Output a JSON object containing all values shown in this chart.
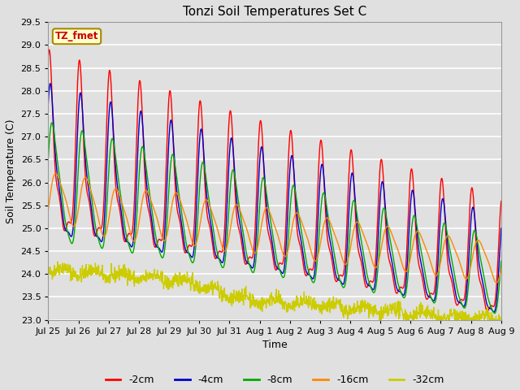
{
  "title": "Tonzi Soil Temperatures Set C",
  "xlabel": "Time",
  "ylabel": "Soil Temperature (C)",
  "legend_label": "TZ_fmet",
  "ylim": [
    23.0,
    29.5
  ],
  "series_labels": [
    "-2cm",
    "-4cm",
    "-8cm",
    "-16cm",
    "-32cm"
  ],
  "series_colors": [
    "#ff0000",
    "#0000cc",
    "#00aa00",
    "#ff8800",
    "#cccc00"
  ],
  "background_color": "#e0e0e0",
  "plot_background": "#e0e0e0",
  "grid_color": "#ffffff",
  "x_tick_labels": [
    "Jul 25",
    "Jul 26",
    "Jul 27",
    "Jul 28",
    "Jul 29",
    "Jul 30",
    "Jul 31",
    "Aug 1",
    "Aug 2",
    "Aug 3",
    "Aug 4",
    "Aug 5",
    "Aug 6",
    "Aug 7",
    "Aug 8",
    "Aug 9"
  ]
}
